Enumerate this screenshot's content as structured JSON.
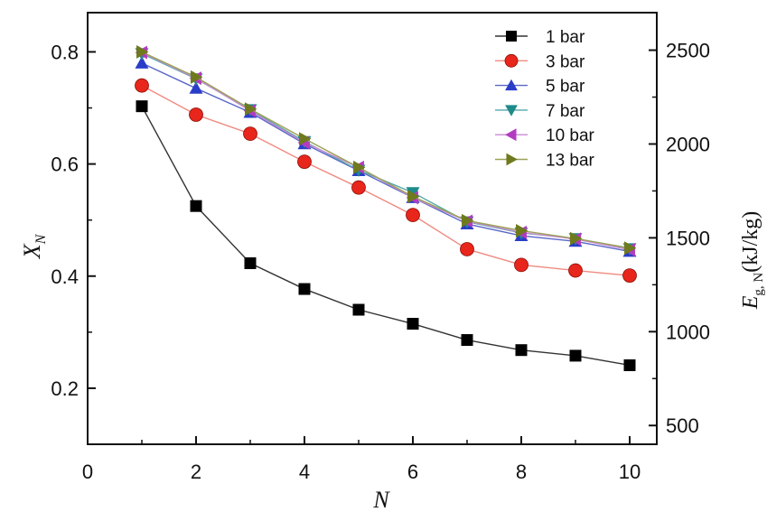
{
  "chart_data": {
    "type": "line",
    "x_label": "N",
    "y_label_main": "X",
    "y_label_sub": "N",
    "y2_label_main": "E",
    "y2_label_sub": "g, N",
    "y2_label_unit": "(kJ/kg)",
    "xlim": [
      0,
      10.5
    ],
    "ylim": [
      0.1,
      0.87
    ],
    "y2lim": [
      400,
      2700
    ],
    "x_ticks": [
      "0",
      "2",
      "4",
      "6",
      "8",
      "10"
    ],
    "y_ticks": [
      "0.2",
      "0.4",
      "0.6",
      "0.8"
    ],
    "y2_ticks": [
      "500",
      "1000",
      "1500",
      "2000",
      "2500"
    ],
    "legend_position": "top-right",
    "grid": false,
    "x": [
      1,
      2,
      3,
      4,
      5,
      6,
      7,
      8,
      9,
      10
    ],
    "series": [
      {
        "name": "1 bar",
        "marker": "square",
        "color": "#000000",
        "line": "#333333",
        "values": [
          0.703,
          0.525,
          0.423,
          0.377,
          0.34,
          0.315,
          0.286,
          0.268,
          0.258,
          0.241
        ]
      },
      {
        "name": "3 bar",
        "marker": "circle",
        "color": "#e8261b",
        "line": "#f08a80",
        "values": [
          0.74,
          0.688,
          0.654,
          0.604,
          0.558,
          0.509,
          0.448,
          0.42,
          0.41,
          0.401
        ]
      },
      {
        "name": "5 bar",
        "marker": "triangle-up",
        "color": "#2a3dc9",
        "line": "#5a66c8",
        "values": [
          0.78,
          0.735,
          0.692,
          0.636,
          0.588,
          0.54,
          0.493,
          0.472,
          0.462,
          0.444
        ]
      },
      {
        "name": "7 bar",
        "marker": "triangle-down",
        "color": "#1f8a8a",
        "line": "#55a8a8",
        "values": [
          0.797,
          0.752,
          0.697,
          0.64,
          0.589,
          0.549,
          0.497,
          0.477,
          0.467,
          0.449
        ]
      },
      {
        "name": "10 bar",
        "marker": "triangle-left",
        "color": "#b23cc0",
        "line": "#c98ad2",
        "values": [
          0.799,
          0.753,
          0.695,
          0.638,
          0.594,
          0.54,
          0.498,
          0.478,
          0.466,
          0.447
        ]
      },
      {
        "name": "13 bar",
        "marker": "triangle-right",
        "color": "#6f7a1f",
        "line": "#9aa256",
        "values": [
          0.8,
          0.755,
          0.698,
          0.645,
          0.594,
          0.542,
          0.499,
          0.481,
          0.467,
          0.45
        ]
      }
    ]
  }
}
